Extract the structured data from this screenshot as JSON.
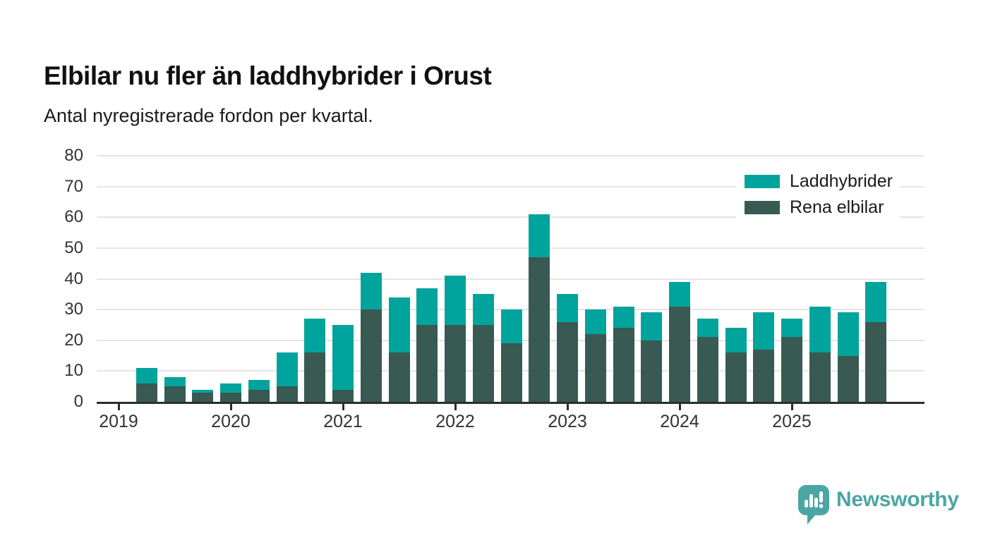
{
  "header": {
    "title": "Elbilar nu fler än laddhybrider i Orust",
    "subtitle": "Antal nyregistrerade fordon per kvartal."
  },
  "footer": {
    "brand": "Newsworthy",
    "brand_color": "#4ba6a3",
    "logo_icon": "newsworthy-speech-bubble-bar-chart-icon"
  },
  "chart_data": {
    "type": "bar",
    "stacked": true,
    "title": "Elbilar nu fler än laddhybrider i Orust",
    "subtitle": "Antal nyregistrerade fordon per kvartal.",
    "xlabel": "",
    "ylabel": "",
    "ylim": [
      0,
      80
    ],
    "y_ticks": [
      0,
      10,
      20,
      30,
      40,
      50,
      60,
      70,
      80
    ],
    "x_tick_labels": [
      "2019",
      "2020",
      "2021",
      "2022",
      "2023",
      "2024",
      "2025"
    ],
    "grid": "horizontal",
    "legend_position": "top-right",
    "categories": [
      "2019 Q2",
      "2019 Q3",
      "2019 Q4",
      "2020 Q1",
      "2020 Q2",
      "2020 Q3",
      "2020 Q4",
      "2021 Q1",
      "2021 Q2",
      "2021 Q3",
      "2021 Q4",
      "2022 Q1",
      "2022 Q2",
      "2022 Q3",
      "2022 Q4",
      "2023 Q1",
      "2023 Q2",
      "2023 Q3",
      "2023 Q4",
      "2024 Q1",
      "2024 Q2",
      "2024 Q3",
      "2024 Q4",
      "2025 Q1",
      "2025 Q2",
      "2025 Q3",
      "2025 Q4"
    ],
    "series": [
      {
        "name": "Laddhybrider",
        "color": "#00a49c",
        "values": [
          5,
          3,
          1,
          3,
          3,
          11,
          11,
          21,
          12,
          18,
          12,
          16,
          10,
          11,
          14,
          9,
          8,
          7,
          9,
          8,
          6,
          8,
          12,
          6,
          15,
          14,
          13
        ]
      },
      {
        "name": "Rena elbilar",
        "color": "#385a52",
        "values": [
          6,
          5,
          3,
          3,
          4,
          5,
          16,
          4,
          30,
          16,
          25,
          25,
          25,
          19,
          47,
          26,
          22,
          24,
          20,
          31,
          21,
          16,
          17,
          21,
          16,
          15,
          26
        ]
      }
    ]
  }
}
